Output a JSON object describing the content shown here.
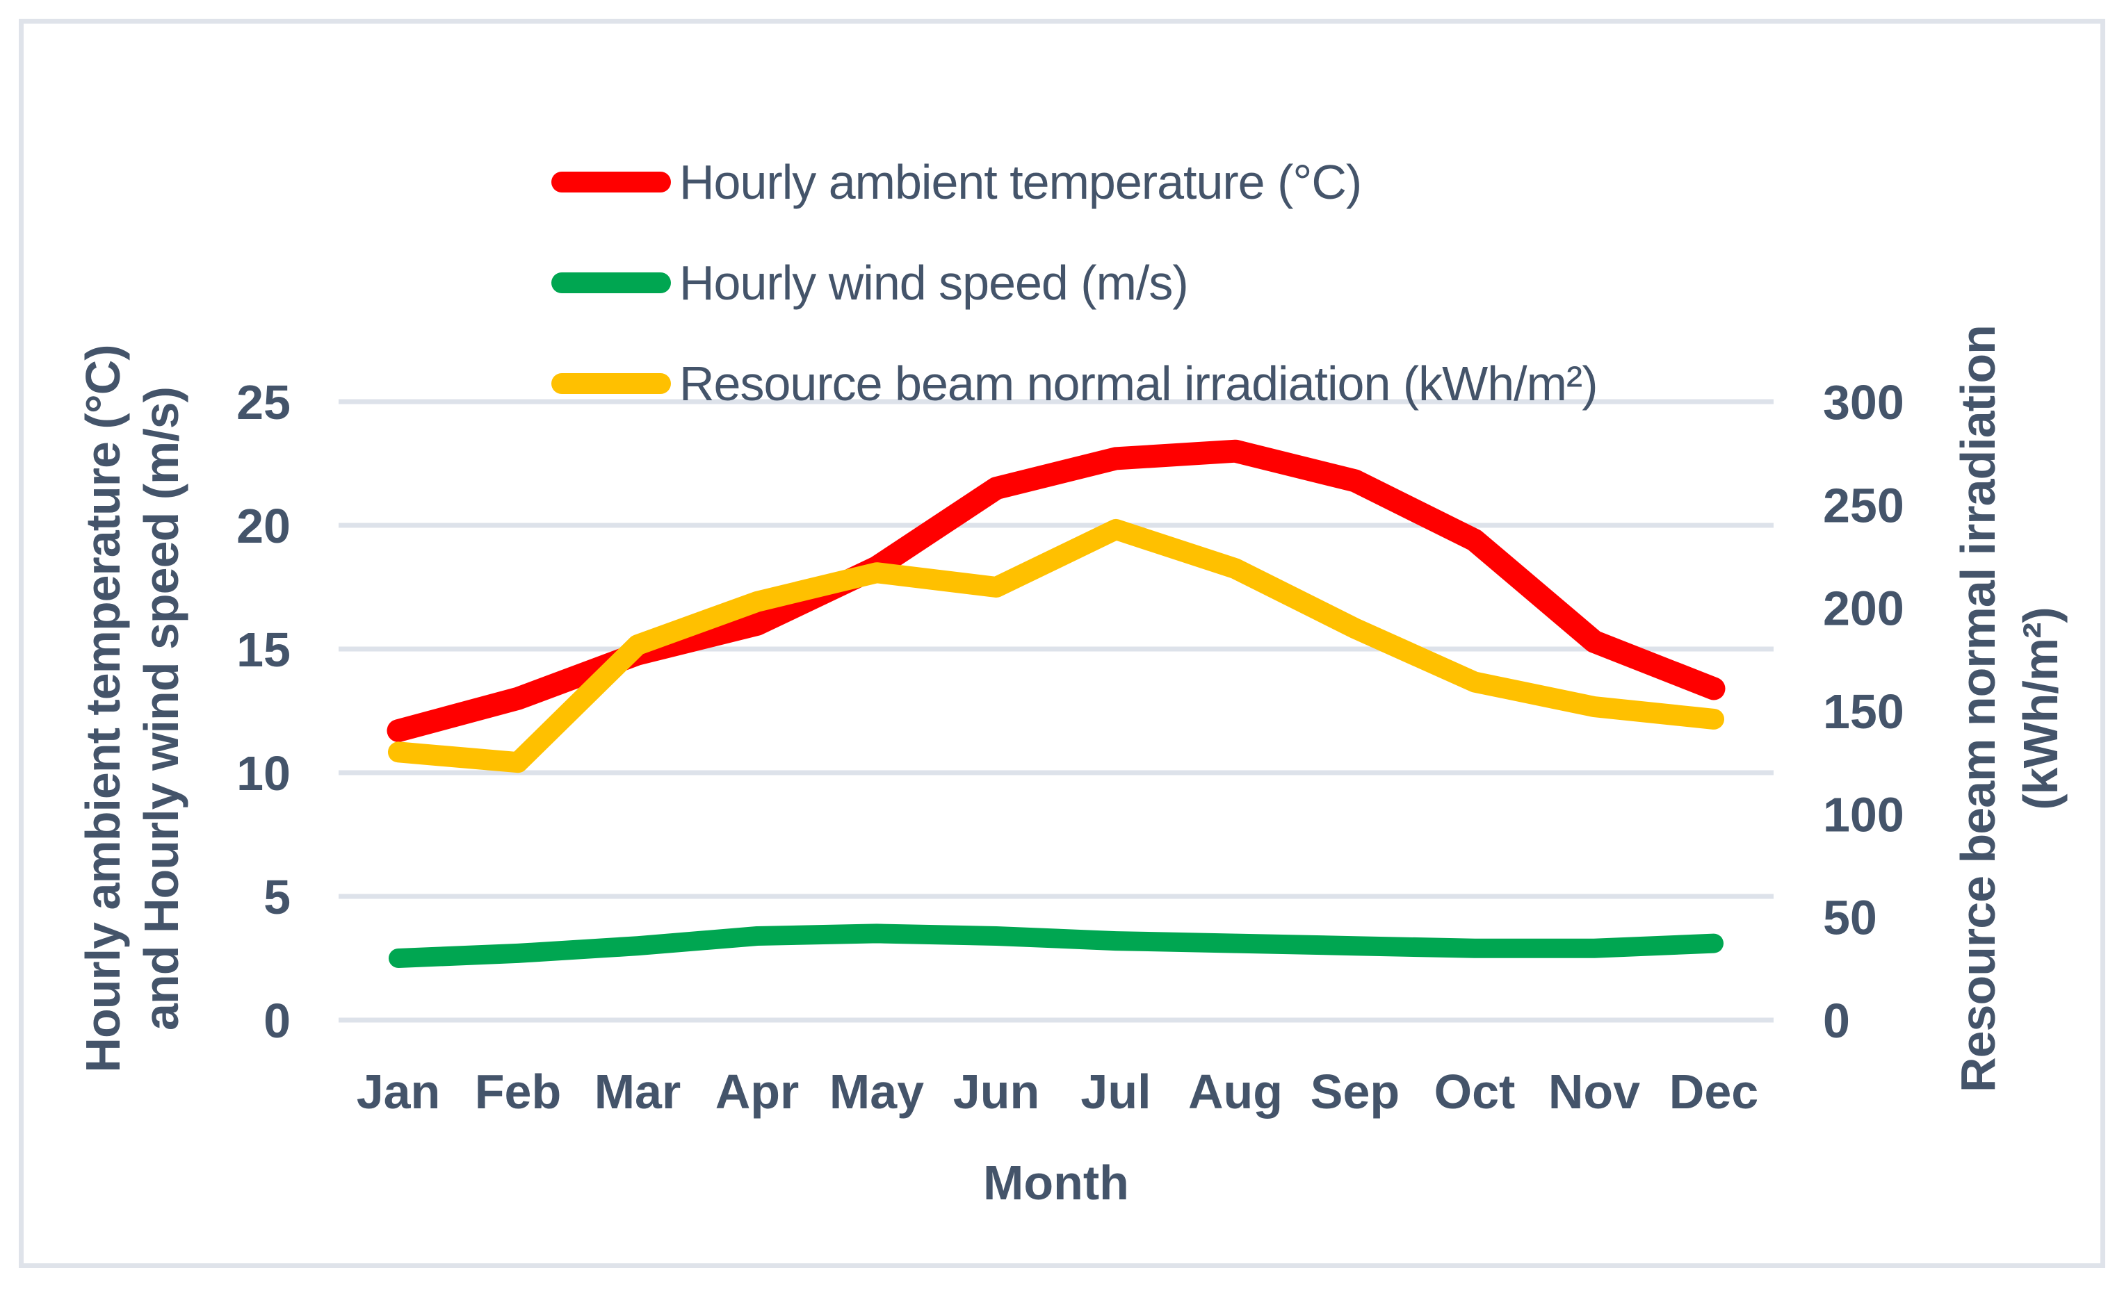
{
  "chart_data": {
    "type": "line",
    "categories": [
      "Jan",
      "Feb",
      "Mar",
      "Apr",
      "May",
      "Jun",
      "Jul",
      "Aug",
      "Sep",
      "Oct",
      "Nov",
      "Dec"
    ],
    "series": [
      {
        "name": "Hourly ambient temperature (°C)",
        "axis": "left",
        "color": "#ff0000",
        "values": [
          11.7,
          13.0,
          14.8,
          16.0,
          18.3,
          21.5,
          22.7,
          23.0,
          21.8,
          19.4,
          15.3,
          13.4
        ]
      },
      {
        "name": "Hourly wind speed (m/s)",
        "axis": "left",
        "color": "#00a651",
        "values": [
          2.5,
          2.7,
          3.0,
          3.4,
          3.5,
          3.4,
          3.2,
          3.1,
          3.0,
          2.9,
          2.9,
          3.1
        ]
      },
      {
        "name": "Resource beam normal irradiation (kWh/m²)",
        "axis": "right",
        "color": "#ffc000",
        "values": [
          130,
          125,
          182,
          203,
          217,
          210,
          238,
          219,
          190,
          164,
          152,
          146
        ]
      }
    ],
    "left_axis": {
      "title": "Hourly ambient temperature (°C) and Hourly wind speed (m/s)",
      "min": 0,
      "max": 25,
      "ticks": [
        0,
        5,
        10,
        15,
        20,
        25
      ]
    },
    "right_axis": {
      "title": "Resource beam normal irradiation (kWh/m²)",
      "min": 0,
      "max": 300,
      "ticks": [
        0,
        50,
        100,
        150,
        200,
        250,
        300
      ]
    },
    "x_axis": {
      "title": "Month"
    },
    "grid": true,
    "legend_position": "top-left"
  },
  "legend": {
    "items": [
      {
        "label": "Hourly ambient temperature (°C)",
        "color": "#ff0000"
      },
      {
        "label": "Hourly wind speed (m/s)",
        "color": "#00a651"
      },
      {
        "label": "Resource beam normal irradiation (kWh/m²)",
        "color": "#ffc000"
      }
    ]
  },
  "axes_text": {
    "left_title_line1": "Hourly ambient temperature (°C)",
    "left_title_line2": "and Hourly wind speed (m/s)",
    "right_title_line1": "Resource beam normal irradiation",
    "right_title_line2": "(kWh/m²)",
    "x_title": "Month"
  },
  "style": {
    "text_color": "#44546a",
    "grid_color": "#dde2ea",
    "frame_color": "#dfe3ea",
    "background": "#ffffff"
  }
}
